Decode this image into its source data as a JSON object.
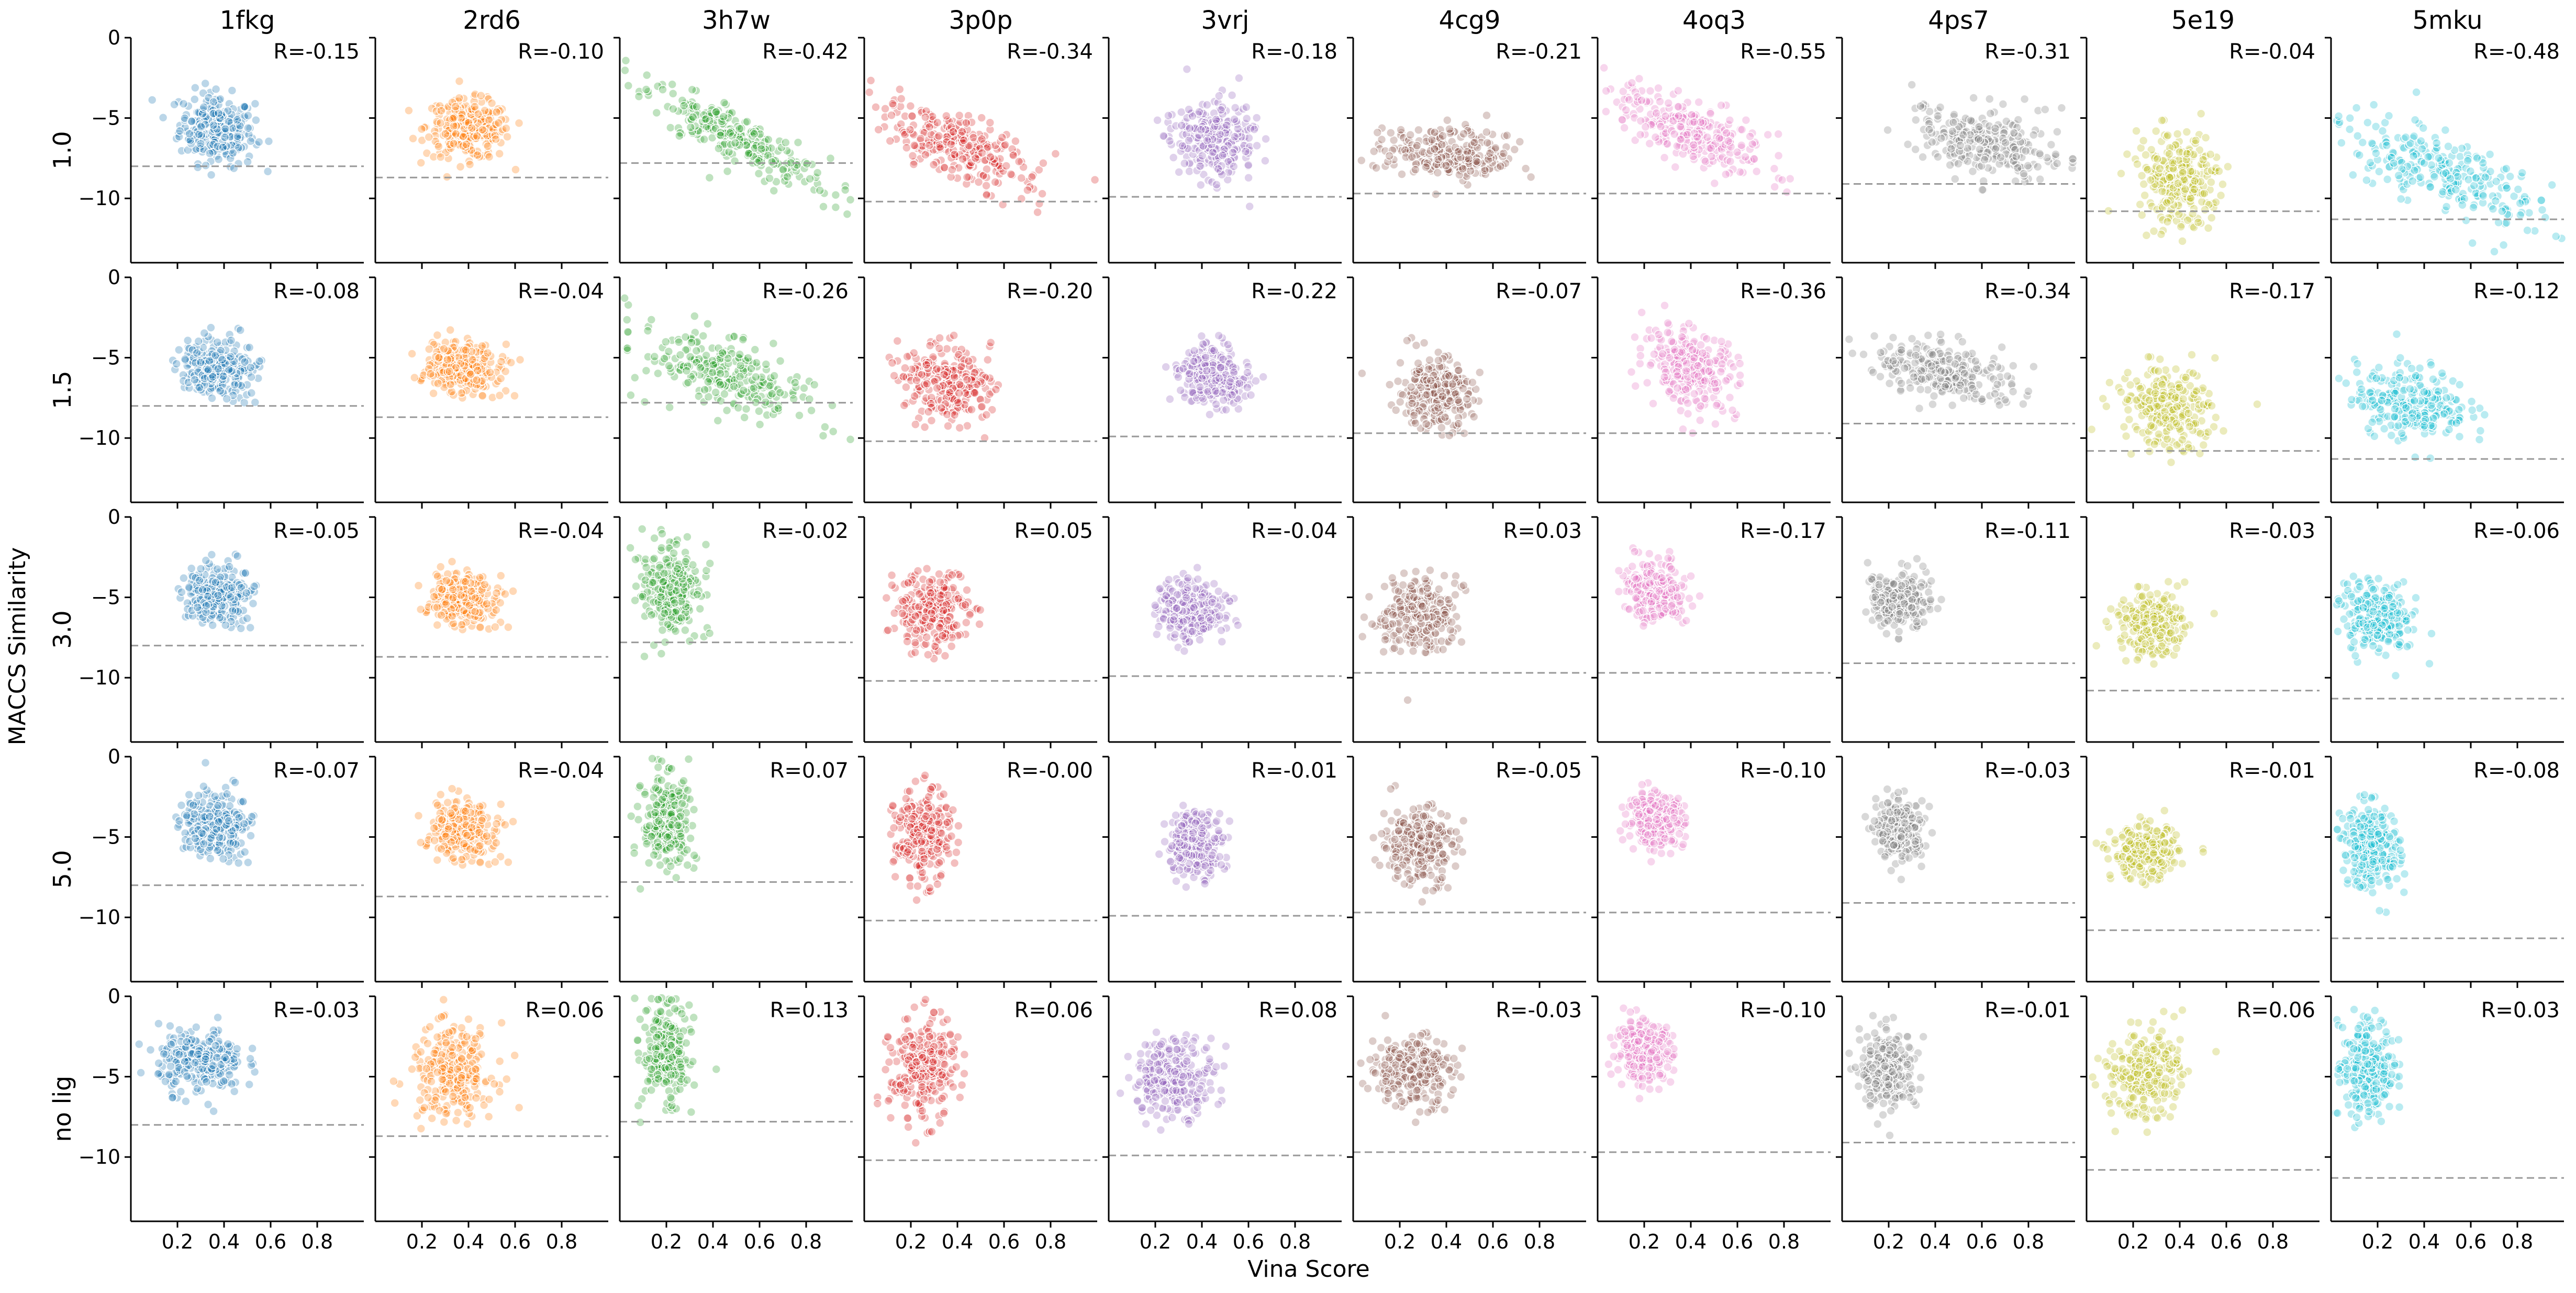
{
  "chart_data": {
    "type": "scatter",
    "xlabel": "Vina Score",
    "ylabel": "MACCS Similarity",
    "xlim": [
      0,
      1.0
    ],
    "ylim": [
      -14,
      0
    ],
    "xticks": [
      "0.2",
      "0.4",
      "0.6",
      "0.8"
    ],
    "yticks": [
      "0",
      "−5",
      "−10"
    ],
    "columns": [
      {
        "name": "1fkg",
        "color": "#1f77b4"
      },
      {
        "name": "2rd6",
        "color": "#ff7f0e"
      },
      {
        "name": "3h7w",
        "color": "#2ca02c"
      },
      {
        "name": "3p0p",
        "color": "#d62728"
      },
      {
        "name": "3vrj",
        "color": "#9467bd"
      },
      {
        "name": "4cg9",
        "color": "#8c564b"
      },
      {
        "name": "4oq3",
        "color": "#e377c2"
      },
      {
        "name": "4ps7",
        "color": "#7f7f7f"
      },
      {
        "name": "5e19",
        "color": "#bcbd22"
      },
      {
        "name": "5mku",
        "color": "#17becf"
      }
    ],
    "rows": [
      "1.0",
      "1.5",
      "3.0",
      "5.0",
      "no lig"
    ],
    "reference_lines": [
      -8.0,
      -8.7,
      -7.8,
      -10.2,
      -9.9,
      -9.7,
      -9.7,
      -9.1,
      -10.8,
      -11.3
    ],
    "correlations": [
      [
        "R=-0.15",
        "R=-0.10",
        "R=-0.42",
        "R=-0.34",
        "R=-0.18",
        "R=-0.21",
        "R=-0.55",
        "R=-0.31",
        "R=-0.04",
        "R=-0.48"
      ],
      [
        "R=-0.08",
        "R=-0.04",
        "R=-0.26",
        "R=-0.20",
        "R=-0.22",
        "R=-0.07",
        "R=-0.36",
        "R=-0.34",
        "R=-0.17",
        "R=-0.12"
      ],
      [
        "R=-0.05",
        "R=-0.04",
        "R=-0.02",
        "R=0.05",
        "R=-0.04",
        "R=0.03",
        "R=-0.17",
        "R=-0.11",
        "R=-0.03",
        "R=-0.06"
      ],
      [
        "R=-0.07",
        "R=-0.04",
        "R=0.07",
        "R=-0.00",
        "R=-0.01",
        "R=-0.05",
        "R=-0.10",
        "R=-0.03",
        "R=-0.01",
        "R=-0.08"
      ],
      [
        "R=-0.03",
        "R=0.06",
        "R=0.13",
        "R=0.06",
        "R=0.08",
        "R=-0.03",
        "R=-0.10",
        "R=-0.01",
        "R=0.06",
        "R=0.03"
      ]
    ],
    "clusters": [
      [
        {
          "cx": 0.37,
          "cy": -5.7,
          "sx": 0.08,
          "sy": 1.1,
          "slope": -2.0
        },
        {
          "cx": 0.4,
          "cy": -5.7,
          "sx": 0.09,
          "sy": 0.9,
          "slope": -1.0
        },
        {
          "cx": 0.5,
          "cy": -6.3,
          "sx": 0.2,
          "sy": 0.8,
          "slope": -7.0
        },
        {
          "cx": 0.4,
          "cy": -6.8,
          "sx": 0.17,
          "sy": 1.0,
          "slope": -5.5
        },
        {
          "cx": 0.45,
          "cy": -6.2,
          "sx": 0.09,
          "sy": 1.2,
          "slope": -2.0
        },
        {
          "cx": 0.4,
          "cy": -7.3,
          "sx": 0.13,
          "sy": 0.8,
          "slope": -1.5
        },
        {
          "cx": 0.4,
          "cy": -5.8,
          "sx": 0.15,
          "sy": 1.0,
          "slope": -6.0
        },
        {
          "cx": 0.62,
          "cy": -6.6,
          "sx": 0.16,
          "sy": 1.1,
          "slope": -3.0
        },
        {
          "cx": 0.4,
          "cy": -8.7,
          "sx": 0.09,
          "sy": 1.4,
          "slope": -1.0
        },
        {
          "cx": 0.48,
          "cy": -8.5,
          "sx": 0.2,
          "sy": 1.2,
          "slope": -5.0
        }
      ],
      [
        {
          "cx": 0.37,
          "cy": -5.6,
          "sx": 0.08,
          "sy": 0.9,
          "slope": -1.0
        },
        {
          "cx": 0.38,
          "cy": -5.6,
          "sx": 0.08,
          "sy": 0.8,
          "slope": -0.5
        },
        {
          "cx": 0.45,
          "cy": -6.0,
          "sx": 0.18,
          "sy": 1.1,
          "slope": -4.0
        },
        {
          "cx": 0.35,
          "cy": -6.5,
          "sx": 0.1,
          "sy": 1.2,
          "slope": -2.5
        },
        {
          "cx": 0.45,
          "cy": -6.2,
          "sx": 0.08,
          "sy": 0.9,
          "slope": -2.5
        },
        {
          "cx": 0.35,
          "cy": -7.2,
          "sx": 0.08,
          "sy": 1.1,
          "slope": -1.0
        },
        {
          "cx": 0.4,
          "cy": -5.6,
          "sx": 0.1,
          "sy": 1.2,
          "slope": -4.0
        },
        {
          "cx": 0.45,
          "cy": -6.0,
          "sx": 0.15,
          "sy": 0.9,
          "slope": -3.0
        },
        {
          "cx": 0.35,
          "cy": -8.1,
          "sx": 0.1,
          "sy": 1.2,
          "slope": -2.0
        },
        {
          "cx": 0.35,
          "cy": -7.8,
          "sx": 0.12,
          "sy": 1.1,
          "slope": -1.5
        }
      ],
      [
        {
          "cx": 0.37,
          "cy": -4.8,
          "sx": 0.07,
          "sy": 0.9,
          "slope": -0.5
        },
        {
          "cx": 0.38,
          "cy": -5.1,
          "sx": 0.07,
          "sy": 0.8,
          "slope": -0.5
        },
        {
          "cx": 0.22,
          "cy": -4.7,
          "sx": 0.06,
          "sy": 1.4,
          "slope": 0.0
        },
        {
          "cx": 0.3,
          "cy": -5.9,
          "sx": 0.08,
          "sy": 1.2,
          "slope": 0.5
        },
        {
          "cx": 0.35,
          "cy": -5.8,
          "sx": 0.07,
          "sy": 1.0,
          "slope": -0.5
        },
        {
          "cx": 0.28,
          "cy": -6.1,
          "sx": 0.08,
          "sy": 1.1,
          "slope": 0.3
        },
        {
          "cx": 0.25,
          "cy": -4.6,
          "sx": 0.06,
          "sy": 0.9,
          "slope": -2.0
        },
        {
          "cx": 0.25,
          "cy": -5.2,
          "sx": 0.07,
          "sy": 0.9,
          "slope": -1.0
        },
        {
          "cx": 0.28,
          "cy": -6.6,
          "sx": 0.07,
          "sy": 0.9,
          "slope": -0.5
        },
        {
          "cx": 0.2,
          "cy": -6.4,
          "sx": 0.07,
          "sy": 1.1,
          "slope": -1.0
        }
      ],
      [
        {
          "cx": 0.36,
          "cy": -4.2,
          "sx": 0.07,
          "sy": 1.0,
          "slope": -1.0
        },
        {
          "cx": 0.38,
          "cy": -4.6,
          "sx": 0.07,
          "sy": 0.9,
          "slope": -0.5
        },
        {
          "cx": 0.2,
          "cy": -4.1,
          "sx": 0.05,
          "sy": 1.5,
          "slope": 1.0
        },
        {
          "cx": 0.25,
          "cy": -5.0,
          "sx": 0.06,
          "sy": 1.4,
          "slope": 0.0
        },
        {
          "cx": 0.37,
          "cy": -5.4,
          "sx": 0.06,
          "sy": 1.0,
          "slope": 0.0
        },
        {
          "cx": 0.28,
          "cy": -5.5,
          "sx": 0.08,
          "sy": 1.2,
          "slope": -0.5
        },
        {
          "cx": 0.25,
          "cy": -3.9,
          "sx": 0.06,
          "sy": 0.8,
          "slope": -1.0
        },
        {
          "cx": 0.25,
          "cy": -4.6,
          "sx": 0.05,
          "sy": 0.9,
          "slope": -0.5
        },
        {
          "cx": 0.25,
          "cy": -6.0,
          "sx": 0.07,
          "sy": 0.8,
          "slope": 0.0
        },
        {
          "cx": 0.17,
          "cy": -5.6,
          "sx": 0.06,
          "sy": 1.3,
          "slope": -1.0
        }
      ],
      [
        {
          "cx": 0.3,
          "cy": -4.0,
          "sx": 0.09,
          "sy": 1.0,
          "slope": -0.5
        },
        {
          "cx": 0.33,
          "cy": -4.8,
          "sx": 0.09,
          "sy": 1.4,
          "slope": 1.0
        },
        {
          "cx": 0.2,
          "cy": -3.6,
          "sx": 0.05,
          "sy": 1.5,
          "slope": 2.0
        },
        {
          "cx": 0.25,
          "cy": -4.6,
          "sx": 0.07,
          "sy": 1.6,
          "slope": 1.0
        },
        {
          "cx": 0.28,
          "cy": -5.0,
          "sx": 0.09,
          "sy": 1.2,
          "slope": 1.0
        },
        {
          "cx": 0.25,
          "cy": -4.6,
          "sx": 0.09,
          "sy": 1.1,
          "slope": -0.5
        },
        {
          "cx": 0.2,
          "cy": -3.4,
          "sx": 0.06,
          "sy": 0.9,
          "slope": -1.0
        },
        {
          "cx": 0.2,
          "cy": -4.6,
          "sx": 0.06,
          "sy": 1.2,
          "slope": 0.0
        },
        {
          "cx": 0.25,
          "cy": -4.8,
          "sx": 0.08,
          "sy": 1.3,
          "slope": 1.0
        },
        {
          "cx": 0.15,
          "cy": -4.5,
          "sx": 0.06,
          "sy": 1.5,
          "slope": 1.0
        }
      ]
    ],
    "points_per_panel": 260
  }
}
